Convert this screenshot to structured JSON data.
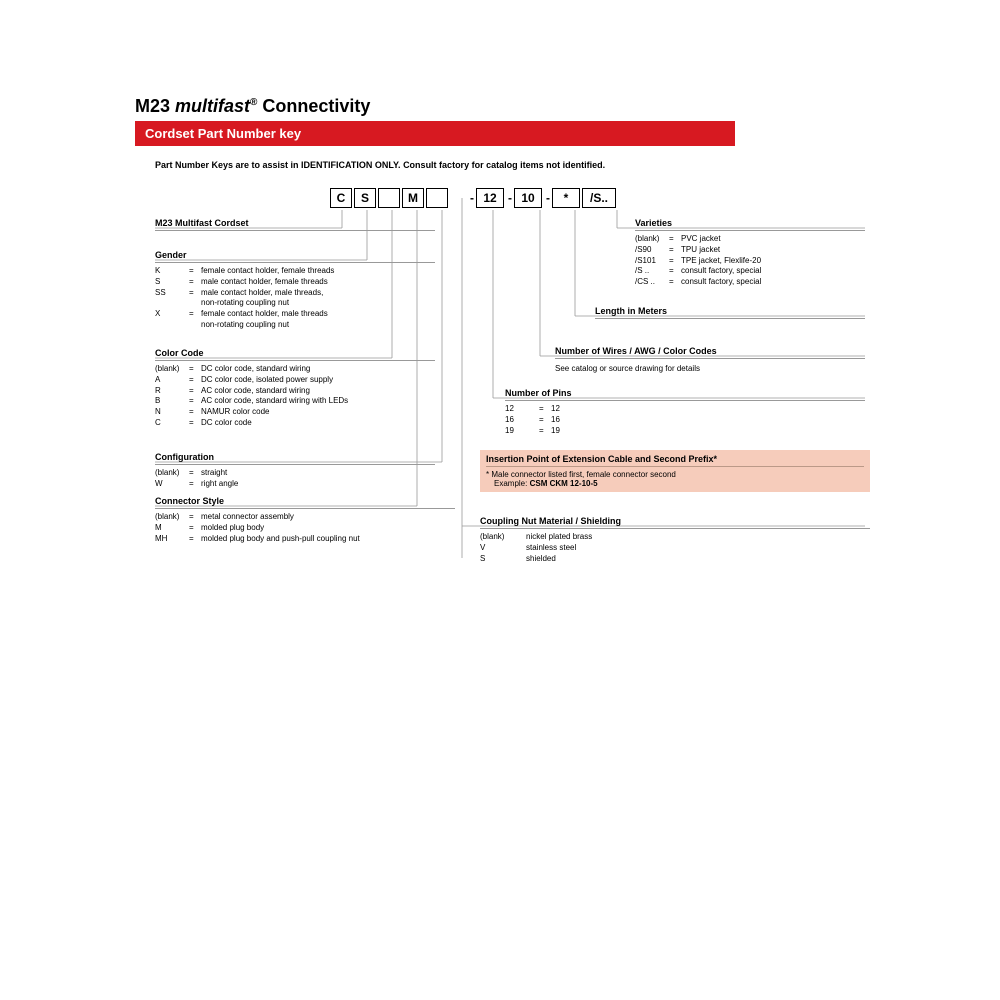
{
  "title_prefix": "M23 ",
  "title_italic": "multifast",
  "title_suffix": " Connectivity",
  "redbar": "Cordset Part Number key",
  "note": "Part Number Keys are to assist in IDENTIFICATION ONLY. Consult factory for catalog items not identified.",
  "boxes": [
    "C",
    "S",
    "",
    "M",
    "",
    "12",
    "10",
    "*",
    "/S.."
  ],
  "separators": [
    "",
    "",
    "",
    "",
    "",
    "-",
    "-",
    "",
    ""
  ],
  "left_sections": [
    {
      "hdr": "M23 Multifast Cordset",
      "rows": []
    },
    {
      "hdr": "Gender",
      "rows": [
        [
          "K",
          "=",
          "female contact holder, female threads"
        ],
        [
          "S",
          "=",
          "male contact holder, female threads"
        ],
        [
          "SS",
          "=",
          "male contact holder, male threads,\nnon-rotating coupling nut"
        ],
        [
          "X",
          "=",
          "female contact holder, male threads\nnon-rotating coupling nut"
        ]
      ]
    },
    {
      "hdr": "Color Code",
      "rows": [
        [
          "(blank)",
          "=",
          "DC color code, standard wiring"
        ],
        [
          "A",
          "=",
          "DC color code, isolated power supply"
        ],
        [
          "R",
          "=",
          "AC color code, standard wiring"
        ],
        [
          "B",
          "=",
          "AC color code, standard wiring with LEDs"
        ],
        [
          "N",
          "=",
          "NAMUR color code"
        ],
        [
          "C",
          "=",
          "DC color code"
        ]
      ]
    },
    {
      "hdr": "Configuration",
      "rows": [
        [
          "(blank)",
          "=",
          "straight"
        ],
        [
          "W",
          "=",
          "right angle"
        ]
      ]
    },
    {
      "hdr": "Connector Style",
      "rows": [
        [
          "(blank)",
          "=",
          "metal connector assembly"
        ],
        [
          "M",
          "=",
          "molded plug body"
        ],
        [
          "MH",
          "=",
          "molded plug body and push-pull coupling nut"
        ]
      ]
    }
  ],
  "right_sections": {
    "varieties": {
      "hdr": "Varieties",
      "rows": [
        [
          "(blank)",
          "=",
          "PVC jacket"
        ],
        [
          "/S90",
          "=",
          "TPU jacket"
        ],
        [
          "/S101",
          "=",
          "TPE jacket, Flexlife-20"
        ],
        [
          "/S ..",
          "=",
          "consult factory, special"
        ],
        [
          "/CS ..",
          "=",
          "consult factory, special"
        ]
      ]
    },
    "length": {
      "hdr": "Length in Meters",
      "rows": []
    },
    "wires": {
      "hdr": "Number of Wires / AWG / Color Codes",
      "note": "See catalog or source drawing for details"
    },
    "pins": {
      "hdr": "Number of Pins",
      "rows": [
        [
          "12",
          "=",
          "12"
        ],
        [
          "16",
          "=",
          "16"
        ],
        [
          "19",
          "=",
          "19"
        ]
      ]
    },
    "insertion": {
      "hdr": "Insertion Point of Extension Cable and Second Prefix*",
      "line1": "*  Male connector listed first, female connector second",
      "line2": "Example: ",
      "ex": "CSM CKM 12-10-5"
    },
    "coupling": {
      "hdr": "Coupling Nut Material / Shielding",
      "rows": [
        [
          "(blank)",
          "",
          "nickel plated brass"
        ],
        [
          "V",
          "",
          "stainless steel"
        ],
        [
          "S",
          "",
          "shielded"
        ]
      ]
    }
  },
  "colors": {
    "red": "#d71921",
    "insertion_bg": "#f6ccbb"
  }
}
